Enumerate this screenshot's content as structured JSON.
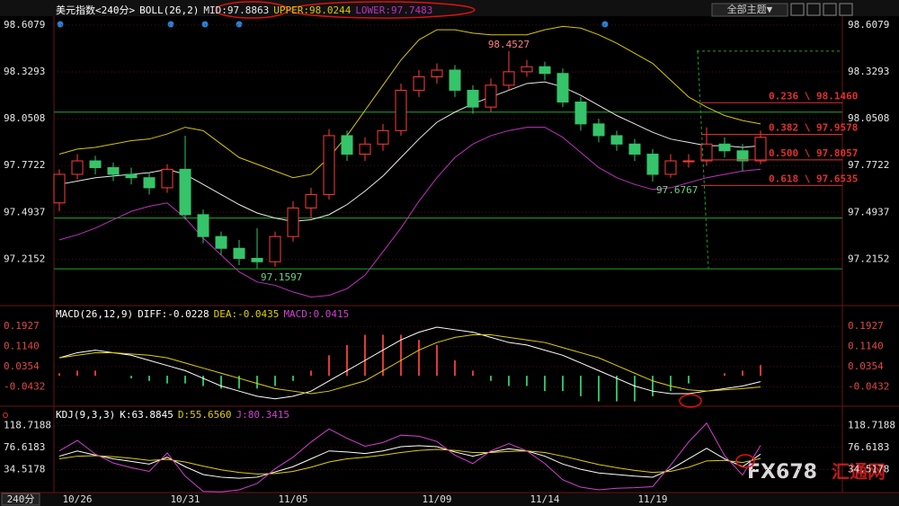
{
  "chart_data": [
    {
      "type": "candlestick",
      "title": "美元指数<240分>",
      "indicator": "BOLL(26,2)",
      "categories": [
        null,
        "10/26",
        null,
        null,
        null,
        null,
        null,
        "10/31",
        null,
        null,
        null,
        null,
        null,
        "11/05",
        null,
        null,
        null,
        null,
        null,
        null,
        null,
        "11/09",
        null,
        null,
        null,
        null,
        null,
        "11/14",
        null,
        null,
        null,
        null,
        null,
        "11/19",
        null,
        null,
        null,
        null,
        null,
        null
      ],
      "open": [
        97.55,
        97.72,
        97.8,
        97.76,
        97.72,
        97.7,
        97.64,
        97.75,
        97.48,
        97.35,
        97.28,
        97.22,
        97.2,
        97.35,
        97.52,
        97.6,
        97.95,
        97.84,
        97.9,
        97.98,
        98.22,
        98.3,
        98.34,
        98.22,
        98.12,
        98.25,
        98.33,
        98.36,
        98.32,
        98.15,
        98.02,
        97.95,
        97.9,
        97.84,
        97.72,
        97.8,
        97.8,
        97.9,
        97.86,
        97.8
      ],
      "high": [
        97.75,
        97.84,
        97.83,
        97.79,
        97.76,
        97.73,
        97.78,
        97.95,
        97.51,
        97.38,
        97.33,
        97.4,
        97.38,
        97.56,
        97.64,
        97.99,
        97.98,
        97.94,
        98.02,
        98.26,
        98.34,
        98.38,
        98.37,
        98.25,
        98.29,
        98.4527,
        98.4,
        98.39,
        98.35,
        98.18,
        98.05,
        97.98,
        97.93,
        97.87,
        97.84,
        97.84,
        98.0,
        97.94,
        97.9,
        97.98
      ],
      "low": [
        97.5,
        97.69,
        97.72,
        97.68,
        97.66,
        97.6,
        97.61,
        97.45,
        97.31,
        97.24,
        97.18,
        97.1597,
        97.17,
        97.32,
        97.46,
        97.57,
        97.8,
        97.8,
        97.86,
        97.95,
        98.18,
        98.26,
        98.18,
        98.08,
        98.09,
        98.22,
        98.3,
        98.28,
        98.12,
        97.98,
        97.91,
        97.86,
        97.8,
        97.6767,
        97.7,
        97.76,
        97.77,
        97.82,
        97.74,
        97.78
      ],
      "close": [
        97.72,
        97.8,
        97.76,
        97.72,
        97.7,
        97.64,
        97.75,
        97.48,
        97.35,
        97.28,
        97.22,
        97.2,
        97.35,
        97.52,
        97.6,
        97.95,
        97.84,
        97.9,
        97.98,
        98.22,
        98.3,
        98.34,
        98.22,
        98.12,
        98.25,
        98.33,
        98.36,
        98.32,
        98.15,
        98.02,
        97.95,
        97.9,
        97.84,
        97.72,
        97.8,
        97.8,
        97.9,
        97.86,
        97.8,
        97.94
      ],
      "up_color": "#ff3c3c",
      "down_color": "#35c46a",
      "series": [
        {
          "name": "MID:97.8863",
          "color": "#e8e8e8",
          "values": [
            97.66,
            97.68,
            97.7,
            97.71,
            97.72,
            97.73,
            97.75,
            97.72,
            97.66,
            97.6,
            97.54,
            97.49,
            97.46,
            97.44,
            97.45,
            97.48,
            97.54,
            97.62,
            97.71,
            97.82,
            97.93,
            98.03,
            98.09,
            98.14,
            98.18,
            98.22,
            98.26,
            98.27,
            98.24,
            98.19,
            98.13,
            98.07,
            98.02,
            97.97,
            97.93,
            97.91,
            97.89,
            97.89,
            97.88,
            97.89
          ]
        },
        {
          "name": "UPPER:98.0244",
          "color": "#d8c800",
          "values": [
            97.84,
            97.87,
            97.88,
            97.9,
            97.92,
            97.93,
            97.96,
            98.0,
            97.98,
            97.9,
            97.82,
            97.78,
            97.74,
            97.7,
            97.72,
            97.82,
            97.95,
            98.1,
            98.25,
            98.4,
            98.52,
            98.58,
            98.58,
            98.56,
            98.55,
            98.55,
            98.55,
            98.58,
            98.6,
            98.59,
            98.55,
            98.5,
            98.44,
            98.38,
            98.28,
            98.18,
            98.12,
            98.07,
            98.04,
            98.02
          ]
        },
        {
          "name": "LOWER:97.7483",
          "color": "#c030c0",
          "values": [
            97.33,
            97.36,
            97.4,
            97.45,
            97.5,
            97.53,
            97.55,
            97.46,
            97.34,
            97.24,
            97.14,
            97.08,
            97.06,
            97.02,
            96.99,
            97.0,
            97.04,
            97.12,
            97.26,
            97.4,
            97.56,
            97.7,
            97.82,
            97.9,
            97.95,
            97.98,
            98.0,
            98.0,
            97.94,
            97.85,
            97.76,
            97.7,
            97.66,
            97.63,
            97.64,
            97.67,
            97.7,
            97.72,
            97.74,
            97.75
          ]
        }
      ],
      "hlines": [
        98.09,
        97.46,
        97.158
      ],
      "hline_color": "#1fa81f",
      "fib_levels": [
        {
          "value": 98.146,
          "label": "0.236 \\ 98.1460"
        },
        {
          "value": 97.9578,
          "label": "0.382 \\ 97.9578"
        },
        {
          "value": 97.8057,
          "label": "0.500 \\ 97.8057"
        },
        {
          "value": 97.6535,
          "label": "0.618 \\ 97.6535"
        }
      ],
      "fib_color": "#e03030",
      "ylim": [
        96.95,
        98.65
      ],
      "yticks": [
        98.6079,
        98.3293,
        98.0508,
        97.7722,
        97.4937,
        97.2152
      ]
    },
    {
      "type": "macd",
      "title": "MACD(26,12,9)",
      "up_color": "#e03838",
      "down_color": "#2fb860",
      "series": [
        {
          "name": "DIFF:-0.0228",
          "color": "#ffffff",
          "values": [
            0.07,
            0.09,
            0.1,
            0.09,
            0.08,
            0.06,
            0.04,
            0.02,
            -0.01,
            -0.04,
            -0.06,
            -0.08,
            -0.09,
            -0.08,
            -0.06,
            -0.02,
            0.02,
            0.06,
            0.1,
            0.14,
            0.17,
            0.19,
            0.18,
            0.17,
            0.15,
            0.13,
            0.12,
            0.1,
            0.08,
            0.05,
            0.02,
            -0.01,
            -0.04,
            -0.06,
            -0.07,
            -0.07,
            -0.06,
            -0.05,
            -0.04,
            -0.0228
          ]
        },
        {
          "name": "DEA:-0.0435",
          "color": "#e0d000",
          "values": [
            0.07,
            0.08,
            0.09,
            0.09,
            0.085,
            0.08,
            0.07,
            0.05,
            0.03,
            0.01,
            -0.01,
            -0.03,
            -0.05,
            -0.06,
            -0.07,
            -0.06,
            -0.04,
            -0.02,
            0.02,
            0.06,
            0.1,
            0.13,
            0.15,
            0.16,
            0.16,
            0.15,
            0.14,
            0.13,
            0.11,
            0.09,
            0.07,
            0.04,
            0.01,
            -0.02,
            -0.04,
            -0.055,
            -0.06,
            -0.055,
            -0.05,
            -0.0435
          ]
        },
        {
          "name": "MACD:0.0415",
          "color": "#d040d0",
          "style": "histogram",
          "values": [
            0.01,
            0.02,
            0.02,
            0.0,
            -0.01,
            -0.02,
            -0.03,
            -0.03,
            -0.04,
            -0.05,
            -0.05,
            -0.05,
            -0.04,
            -0.02,
            0.02,
            0.08,
            0.12,
            0.16,
            0.16,
            0.16,
            0.14,
            0.12,
            0.06,
            0.02,
            -0.02,
            -0.04,
            -0.04,
            -0.06,
            -0.06,
            -0.08,
            -0.1,
            -0.1,
            -0.1,
            -0.08,
            -0.06,
            -0.03,
            0.0,
            0.01,
            0.02,
            0.0415
          ]
        }
      ],
      "ylim": [
        -0.112,
        0.239
      ],
      "yticks": [
        0.1927,
        {
          "value": 0.114,
          "label": "0.1140"
        },
        0.0354,
        -0.0432
      ]
    },
    {
      "type": "kdj",
      "title": "KDJ(9,3,3)",
      "series": [
        {
          "name": "K:63.8845",
          "color": "#ffffff",
          "values": [
            60,
            70,
            62,
            55,
            50,
            45,
            58,
            40,
            25,
            20,
            18,
            20,
            30,
            40,
            55,
            70,
            68,
            65,
            70,
            78,
            80,
            78,
            68,
            60,
            68,
            74,
            70,
            60,
            45,
            35,
            28,
            25,
            22,
            20,
            35,
            55,
            75,
            55,
            40,
            63.8845
          ]
        },
        {
          "name": "D:55.6560",
          "color": "#e0d000",
          "values": [
            55,
            60,
            61,
            59,
            56,
            52,
            54,
            49,
            41,
            34,
            29,
            26,
            27,
            31,
            39,
            49,
            55,
            58,
            62,
            67,
            71,
            73,
            71,
            67,
            67,
            69,
            70,
            67,
            60,
            52,
            44,
            38,
            33,
            29,
            31,
            39,
            51,
            52,
            48,
            55.656
          ]
        },
        {
          "name": "J:80.3415",
          "color": "#d040d0",
          "values": [
            70,
            90,
            64,
            47,
            38,
            31,
            66,
            22,
            -7,
            -8,
            -4,
            8,
            36,
            58,
            87,
            112,
            94,
            79,
            86,
            100,
            98,
            88,
            62,
            46,
            70,
            84,
            70,
            46,
            15,
            1,
            -4,
            -1,
            0,
            2,
            43,
            87,
            123,
            61,
            24,
            80.3415
          ]
        }
      ],
      "ylim": [
        -9.2,
        141.4
      ],
      "yticks": [
        118.7188,
        76.6183,
        34.5178
      ]
    }
  ],
  "toolbar": {
    "theme_button": "全部主题▼",
    "period": "240分",
    "watermark_brand": "FX678",
    "watermark_cn": "汇通网"
  }
}
